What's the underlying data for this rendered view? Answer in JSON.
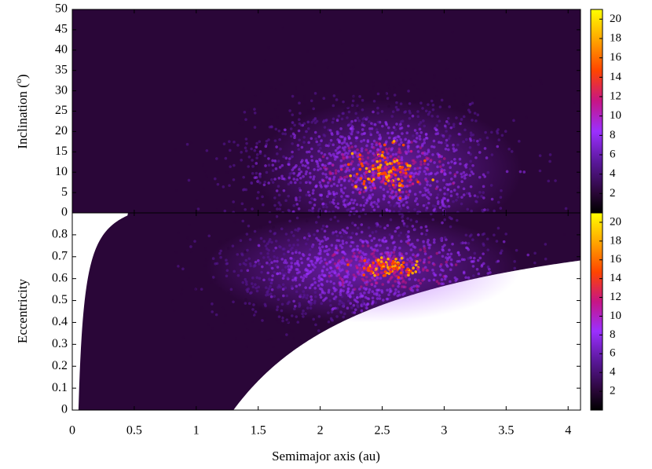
{
  "chart_data": [
    {
      "type": "heatmap",
      "panel": "top",
      "ylabel_main": "Inclination (",
      "ylabel_sup": "o",
      "ylabel_close": ")",
      "xlim": [
        0,
        4.1
      ],
      "ylim": [
        0,
        50
      ],
      "yticks": [
        "0",
        "5",
        "10",
        "15",
        "20",
        "25",
        "30",
        "35",
        "40",
        "45",
        "50"
      ],
      "density_peak": {
        "x": 2.55,
        "y": 10.5,
        "value": 20
      },
      "colorbar": {
        "range": [
          0,
          21
        ],
        "ticks": [
          "2",
          "4",
          "6",
          "8",
          "10",
          "12",
          "14",
          "16",
          "18",
          "20"
        ]
      }
    },
    {
      "type": "heatmap",
      "panel": "bottom",
      "ylabel": "Eccentricity",
      "xlabel": "Semimajor axis (au)",
      "xlim": [
        0,
        4.1
      ],
      "ylim": [
        0,
        0.9
      ],
      "xticks": [
        "0",
        "0.5",
        "1",
        "1.5",
        "2",
        "2.5",
        "3",
        "3.5",
        "4"
      ],
      "yticks": [
        "0",
        "0.1",
        "0.2",
        "0.3",
        "0.4",
        "0.5",
        "0.6",
        "0.7",
        "0.8"
      ],
      "density_peak": {
        "x": 2.55,
        "y": 0.65,
        "value": 20
      },
      "colorbar": {
        "range": [
          0,
          21
        ],
        "ticks": [
          "2",
          "4",
          "6",
          "8",
          "10",
          "12",
          "14",
          "16",
          "18",
          "20"
        ]
      }
    }
  ],
  "colors": {
    "background": "#2a0638",
    "colormap": [
      "#000000",
      "#2a0638",
      "#5a189a",
      "#9b30ff",
      "#c71585",
      "#ff4500",
      "#ffa500",
      "#ffff00"
    ]
  }
}
